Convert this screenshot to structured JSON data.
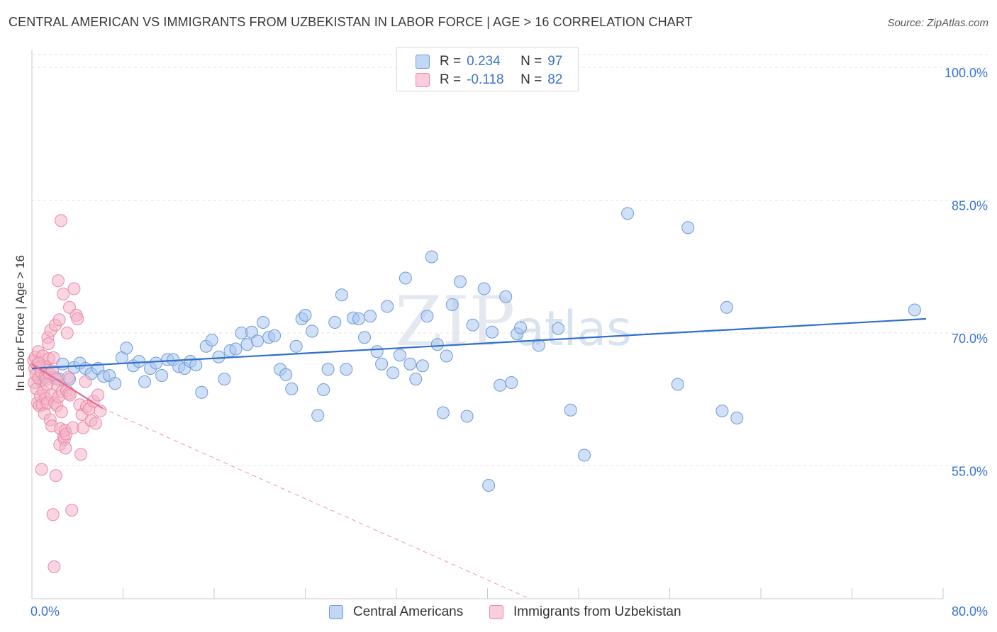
{
  "title": "CENTRAL AMERICAN VS IMMIGRANTS FROM UZBEKISTAN IN LABOR FORCE | AGE > 16 CORRELATION CHART",
  "source": "Source: ZipAtlas.com",
  "watermark": {
    "zip": "ZIP",
    "atlas": "atlas"
  },
  "legend_top": {
    "rows": [
      {
        "r_label": "R =",
        "r_value": "0.234",
        "n_label": "N =",
        "n_value": "97"
      },
      {
        "r_label": "R =",
        "r_value": "-0.118",
        "n_label": "N =",
        "n_value": "82"
      }
    ]
  },
  "legend_bottom": [
    "Central Americans",
    "Immigrants from Uzbekistan"
  ],
  "colors": {
    "blue_fill": "#a9c6ee",
    "blue_stroke": "#6f9ad8",
    "blue_line": "#2f6fcc",
    "pink_fill": "#f4b5c8",
    "pink_stroke": "#e98aa6",
    "pink_line": "#e06a92",
    "axis_text": "#3b74c9",
    "grid": "#e2e2e2"
  },
  "chart_data": {
    "type": "scatter",
    "title": "CENTRAL AMERICAN VS IMMIGRANTS FROM UZBEKISTAN IN LABOR FORCE | AGE > 16 CORRELATION CHART",
    "xlabel": "",
    "ylabel": "In Labor Force | Age > 16",
    "xlim": [
      0,
      80
    ],
    "ylim": [
      40,
      102
    ],
    "x_tick_labels": [
      "0.0%",
      "80.0%"
    ],
    "y_ticks": [
      55,
      70,
      85,
      100
    ],
    "y_tick_labels": [
      "55.0%",
      "70.0%",
      "85.0%",
      "100.0%"
    ],
    "grid": true,
    "legend_position": "top-center",
    "series": [
      {
        "name": "Central Americans",
        "color": "#a9c6ee",
        "trend": {
          "x": [
            0,
            78.5
          ],
          "y": [
            66.0,
            71.6
          ]
        },
        "points": [
          [
            0.8,
            64.6
          ],
          [
            1.4,
            65.1
          ],
          [
            2.0,
            65.0
          ],
          [
            2.4,
            64.8
          ],
          [
            2.7,
            66.5
          ],
          [
            3.3,
            64.8
          ],
          [
            3.7,
            66.1
          ],
          [
            4.2,
            66.6
          ],
          [
            4.7,
            66.0
          ],
          [
            5.2,
            65.4
          ],
          [
            5.8,
            66.0
          ],
          [
            6.3,
            65.1
          ],
          [
            6.8,
            65.2
          ],
          [
            7.3,
            64.3
          ],
          [
            7.9,
            67.2
          ],
          [
            8.3,
            68.3
          ],
          [
            8.9,
            66.3
          ],
          [
            9.4,
            66.8
          ],
          [
            9.9,
            64.5
          ],
          [
            10.4,
            66.0
          ],
          [
            10.9,
            66.6
          ],
          [
            11.4,
            65.2
          ],
          [
            11.9,
            67.0
          ],
          [
            12.4,
            67.0
          ],
          [
            12.9,
            66.2
          ],
          [
            13.4,
            66.0
          ],
          [
            13.9,
            66.8
          ],
          [
            14.4,
            66.4
          ],
          [
            14.9,
            63.3
          ],
          [
            15.3,
            68.5
          ],
          [
            15.8,
            69.2
          ],
          [
            16.4,
            67.3
          ],
          [
            16.9,
            64.8
          ],
          [
            17.4,
            68.0
          ],
          [
            17.9,
            68.2
          ],
          [
            18.4,
            70.0
          ],
          [
            18.9,
            68.7
          ],
          [
            19.3,
            70.1
          ],
          [
            19.8,
            69.1
          ],
          [
            20.3,
            71.2
          ],
          [
            20.8,
            69.5
          ],
          [
            21.3,
            69.7
          ],
          [
            21.8,
            65.9
          ],
          [
            22.3,
            65.3
          ],
          [
            22.8,
            63.7
          ],
          [
            23.2,
            68.5
          ],
          [
            23.7,
            71.6
          ],
          [
            24.0,
            72.0
          ],
          [
            24.6,
            70.2
          ],
          [
            25.1,
            60.7
          ],
          [
            25.6,
            63.6
          ],
          [
            26.0,
            65.9
          ],
          [
            26.6,
            71.2
          ],
          [
            27.2,
            74.3
          ],
          [
            27.6,
            65.9
          ],
          [
            28.2,
            71.7
          ],
          [
            28.7,
            71.6
          ],
          [
            29.2,
            69.5
          ],
          [
            29.7,
            71.9
          ],
          [
            30.3,
            67.9
          ],
          [
            30.7,
            66.5
          ],
          [
            31.2,
            73.0
          ],
          [
            31.7,
            65.5
          ],
          [
            32.3,
            67.5
          ],
          [
            32.8,
            76.2
          ],
          [
            33.2,
            66.5
          ],
          [
            33.7,
            64.8
          ],
          [
            34.3,
            66.3
          ],
          [
            34.7,
            71.9
          ],
          [
            35.1,
            78.6
          ],
          [
            35.6,
            68.7
          ],
          [
            36.1,
            61.0
          ],
          [
            36.4,
            67.4
          ],
          [
            36.9,
            73.2
          ],
          [
            37.6,
            75.8
          ],
          [
            38.2,
            60.6
          ],
          [
            38.7,
            70.9
          ],
          [
            39.7,
            75.0
          ],
          [
            40.1,
            52.8
          ],
          [
            40.4,
            70.1
          ],
          [
            41.1,
            64.1
          ],
          [
            41.6,
            74.1
          ],
          [
            42.1,
            64.4
          ],
          [
            42.6,
            69.9
          ],
          [
            42.9,
            70.6
          ],
          [
            44.5,
            68.6
          ],
          [
            46.2,
            70.5
          ],
          [
            47.3,
            61.3
          ],
          [
            48.5,
            56.2
          ],
          [
            52.3,
            83.5
          ],
          [
            56.7,
            64.2
          ],
          [
            57.6,
            81.9
          ],
          [
            60.6,
            61.2
          ],
          [
            61.0,
            72.9
          ],
          [
            61.9,
            60.4
          ],
          [
            77.5,
            72.6
          ]
        ]
      },
      {
        "name": "Immigrants from Uzbekistan",
        "color": "#f4b5c8",
        "trend": {
          "x": [
            0,
            6.2
          ],
          "y": [
            66.5,
            61.5
          ]
        },
        "trend_extension": {
          "x": [
            6.2,
            43.7
          ],
          "y": [
            61.5,
            40.0
          ]
        },
        "points": [
          [
            0.15,
            66.9
          ],
          [
            0.2,
            64.4
          ],
          [
            0.25,
            66.0
          ],
          [
            0.3,
            67.3
          ],
          [
            0.35,
            65.3
          ],
          [
            0.4,
            63.7
          ],
          [
            0.45,
            66.4
          ],
          [
            0.5,
            62.1
          ],
          [
            0.55,
            67.9
          ],
          [
            0.6,
            64.9
          ],
          [
            0.65,
            61.8
          ],
          [
            0.7,
            66.2
          ],
          [
            0.75,
            62.9
          ],
          [
            0.8,
            65.6
          ],
          [
            0.85,
            54.6
          ],
          [
            0.9,
            61.9
          ],
          [
            0.95,
            67.4
          ],
          [
            1.0,
            63.4
          ],
          [
            1.05,
            66.3
          ],
          [
            1.1,
            60.9
          ],
          [
            1.15,
            65.0
          ],
          [
            1.2,
            62.6
          ],
          [
            1.25,
            66.1
          ],
          [
            1.3,
            64.8
          ],
          [
            1.35,
            62.1
          ],
          [
            1.4,
            69.5
          ],
          [
            1.45,
            68.8
          ],
          [
            1.5,
            67.1
          ],
          [
            1.55,
            65.4
          ],
          [
            1.6,
            60.2
          ],
          [
            1.65,
            70.3
          ],
          [
            1.7,
            63.0
          ],
          [
            1.75,
            59.5
          ],
          [
            1.8,
            65.7
          ],
          [
            1.85,
            49.5
          ],
          [
            1.9,
            67.2
          ],
          [
            1.95,
            43.6
          ],
          [
            2.0,
            62.1
          ],
          [
            2.05,
            70.9
          ],
          [
            2.1,
            53.9
          ],
          [
            2.15,
            64.8
          ],
          [
            2.2,
            61.8
          ],
          [
            2.25,
            64.1
          ],
          [
            2.3,
            75.9
          ],
          [
            2.35,
            62.8
          ],
          [
            2.4,
            71.5
          ],
          [
            2.45,
            57.4
          ],
          [
            2.5,
            59.2
          ],
          [
            2.55,
            82.7
          ],
          [
            2.6,
            61.1
          ],
          [
            2.65,
            63.4
          ],
          [
            2.75,
            74.4
          ],
          [
            2.8,
            58.3
          ],
          [
            2.85,
            58.0
          ],
          [
            2.9,
            59.0
          ],
          [
            2.95,
            57.0
          ],
          [
            3.0,
            58.6
          ],
          [
            3.05,
            63.5
          ],
          [
            3.1,
            70.0
          ],
          [
            3.2,
            65.0
          ],
          [
            3.25,
            63.2
          ],
          [
            3.3,
            72.9
          ],
          [
            3.35,
            63.0
          ],
          [
            3.5,
            50.0
          ],
          [
            3.6,
            59.3
          ],
          [
            3.7,
            75.0
          ],
          [
            3.9,
            72.0
          ],
          [
            4.0,
            71.6
          ],
          [
            4.2,
            61.9
          ],
          [
            4.3,
            56.3
          ],
          [
            4.4,
            60.8
          ],
          [
            4.5,
            59.3
          ],
          [
            4.7,
            64.5
          ],
          [
            4.8,
            61.7
          ],
          [
            5.0,
            61.4
          ],
          [
            5.2,
            60.1
          ],
          [
            5.4,
            62.3
          ],
          [
            5.6,
            59.8
          ],
          [
            5.8,
            63.0
          ],
          [
            6.0,
            61.2
          ],
          [
            0.6,
            66.6
          ],
          [
            1.3,
            64.2
          ]
        ]
      }
    ]
  }
}
